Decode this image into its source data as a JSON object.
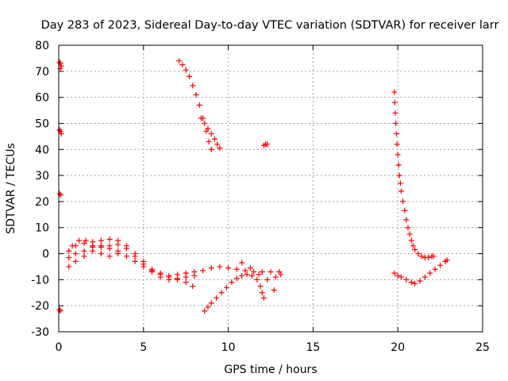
{
  "chart_data": {
    "type": "scatter",
    "title": "Day 283 of 2023, Sidereal Day-to-day VTEC variation (SDTVAR) for receiver larr",
    "xlabel": "GPS time / hours",
    "ylabel": "SDTVAR / TECUs",
    "xlim": [
      0,
      25
    ],
    "ylim": [
      -30,
      80
    ],
    "xticks": [
      0,
      5,
      10,
      15,
      20,
      25
    ],
    "yticks": [
      -30,
      -20,
      -10,
      0,
      10,
      20,
      30,
      40,
      50,
      60,
      70,
      80
    ],
    "grid": true,
    "marker": "plus",
    "color": "#ff0000",
    "series": [
      {
        "name": "edge-points",
        "points": [
          [
            0.05,
            73.5
          ],
          [
            0.1,
            73
          ],
          [
            0.15,
            72
          ],
          [
            0.1,
            71
          ],
          [
            0.05,
            47.5
          ],
          [
            0.1,
            47
          ],
          [
            0.15,
            46
          ],
          [
            0.05,
            23
          ],
          [
            0.12,
            22.5
          ],
          [
            0.05,
            -21.5
          ],
          [
            0.1,
            -22
          ]
        ]
      },
      {
        "name": "band-low-1",
        "points": [
          [
            0.6,
            -5
          ],
          [
            1.0,
            -3
          ],
          [
            1.5,
            -1
          ],
          [
            2.0,
            1
          ],
          [
            2.5,
            2.5
          ],
          [
            3.0,
            3
          ],
          [
            3.5,
            3.5
          ],
          [
            4.0,
            2
          ],
          [
            4.5,
            -1
          ],
          [
            5.0,
            -4
          ],
          [
            5.5,
            -6
          ],
          [
            6.0,
            -7.5
          ],
          [
            6.5,
            -8.5
          ],
          [
            7.0,
            -8
          ],
          [
            7.5,
            -7.5
          ],
          [
            8.0,
            -7
          ],
          [
            8.5,
            -6.5
          ],
          [
            9.0,
            -5.5
          ],
          [
            9.5,
            -5
          ],
          [
            10.0,
            -5.5
          ],
          [
            10.5,
            -6
          ],
          [
            11.0,
            -6.5
          ],
          [
            11.5,
            -7
          ],
          [
            12.0,
            -7
          ],
          [
            12.5,
            -7
          ],
          [
            13.0,
            -7
          ]
        ]
      },
      {
        "name": "band-low-2",
        "points": [
          [
            0.6,
            1
          ],
          [
            1.0,
            3
          ],
          [
            1.5,
            4
          ],
          [
            2.0,
            4.5
          ],
          [
            2.5,
            5
          ],
          [
            3.0,
            5.5
          ],
          [
            3.5,
            5
          ],
          [
            4.0,
            3
          ],
          [
            4.5,
            0
          ],
          [
            5.0,
            -3
          ],
          [
            5.5,
            -6.5
          ],
          [
            6.0,
            -9
          ],
          [
            6.5,
            -10
          ],
          [
            7.0,
            -9.5
          ],
          [
            7.5,
            -9
          ],
          [
            8.0,
            -8.5
          ]
        ]
      },
      {
        "name": "band-low-3",
        "points": [
          [
            0.6,
            -1.5
          ],
          [
            1.0,
            0
          ],
          [
            1.5,
            1
          ],
          [
            2.0,
            2.5
          ],
          [
            2.5,
            3
          ],
          [
            3.0,
            2
          ],
          [
            3.5,
            1
          ],
          [
            4.0,
            -1
          ],
          [
            4.5,
            -3
          ],
          [
            5.0,
            -5
          ],
          [
            5.5,
            -7
          ],
          [
            6.0,
            -8
          ],
          [
            6.5,
            -9
          ],
          [
            7.0,
            -10
          ],
          [
            7.5,
            -11
          ],
          [
            7.9,
            -12.5
          ]
        ]
      },
      {
        "name": "band-low-4",
        "points": [
          [
            0.8,
            3
          ],
          [
            1.2,
            5
          ],
          [
            1.6,
            5
          ],
          [
            2.0,
            3
          ],
          [
            2.5,
            0
          ],
          [
            3.0,
            -1
          ],
          [
            3.5,
            0
          ]
        ]
      },
      {
        "name": "dip-arc",
        "points": [
          [
            8.6,
            -22
          ],
          [
            8.8,
            -20.5
          ],
          [
            9.0,
            -19
          ],
          [
            9.3,
            -17
          ],
          [
            9.6,
            -15
          ],
          [
            9.9,
            -13
          ],
          [
            10.2,
            -11
          ],
          [
            10.5,
            -9.5
          ],
          [
            10.8,
            -8.5
          ],
          [
            11.1,
            -8
          ],
          [
            11.4,
            -8.5
          ],
          [
            11.7,
            -10
          ],
          [
            11.9,
            -12.5
          ],
          [
            12.0,
            -15
          ],
          [
            12.1,
            -17
          ]
        ]
      },
      {
        "name": "tail-segment",
        "points": [
          [
            10.8,
            -3.5
          ],
          [
            11.3,
            -5.5
          ],
          [
            11.8,
            -8
          ],
          [
            12.3,
            -10
          ],
          [
            12.8,
            -9
          ],
          [
            13.1,
            -8
          ]
        ]
      },
      {
        "name": "descend-arc",
        "points": [
          [
            7.1,
            74
          ],
          [
            7.3,
            72.5
          ],
          [
            7.5,
            70.5
          ],
          [
            7.7,
            68
          ],
          [
            7.9,
            64.5
          ],
          [
            8.1,
            61
          ],
          [
            8.3,
            57
          ],
          [
            8.5,
            52
          ],
          [
            8.7,
            47
          ],
          [
            8.85,
            43
          ],
          [
            9.0,
            40
          ]
        ]
      },
      {
        "name": "descend-arc-2",
        "points": [
          [
            8.4,
            52
          ],
          [
            8.6,
            50
          ],
          [
            8.8,
            48
          ],
          [
            9.0,
            46
          ],
          [
            9.2,
            44
          ],
          [
            9.35,
            42
          ],
          [
            9.5,
            40.5
          ]
        ]
      },
      {
        "name": "isolated",
        "points": [
          [
            12.1,
            41.5
          ],
          [
            12.2,
            42
          ],
          [
            12.3,
            42
          ],
          [
            12.7,
            -14
          ]
        ]
      },
      {
        "name": "steep-decay",
        "points": [
          [
            19.8,
            62
          ],
          [
            19.82,
            58
          ],
          [
            19.85,
            54
          ],
          [
            19.88,
            50
          ],
          [
            19.92,
            46
          ],
          [
            19.95,
            42
          ],
          [
            20.0,
            38
          ],
          [
            20.05,
            34
          ],
          [
            20.1,
            30
          ],
          [
            20.15,
            27
          ],
          [
            20.2,
            24
          ],
          [
            20.3,
            20
          ],
          [
            20.4,
            16.5
          ],
          [
            20.5,
            13
          ],
          [
            20.6,
            10
          ],
          [
            20.7,
            7.5
          ],
          [
            20.8,
            5
          ],
          [
            20.9,
            3
          ],
          [
            21.0,
            1.5
          ],
          [
            21.2,
            0
          ],
          [
            21.4,
            -1
          ],
          [
            21.6,
            -1.5
          ],
          [
            21.8,
            -1.5
          ],
          [
            22.0,
            -1
          ],
          [
            22.1,
            -1
          ]
        ]
      },
      {
        "name": "recovery-trough",
        "points": [
          [
            19.8,
            -7.5
          ],
          [
            20.0,
            -8.5
          ],
          [
            20.2,
            -9
          ],
          [
            20.5,
            -10
          ],
          [
            20.8,
            -11
          ],
          [
            21.0,
            -11.5
          ],
          [
            21.3,
            -10.5
          ],
          [
            21.6,
            -9
          ],
          [
            21.9,
            -7.5
          ],
          [
            22.2,
            -6
          ],
          [
            22.5,
            -4.5
          ],
          [
            22.8,
            -3
          ],
          [
            22.9,
            -2.5
          ]
        ]
      }
    ]
  }
}
